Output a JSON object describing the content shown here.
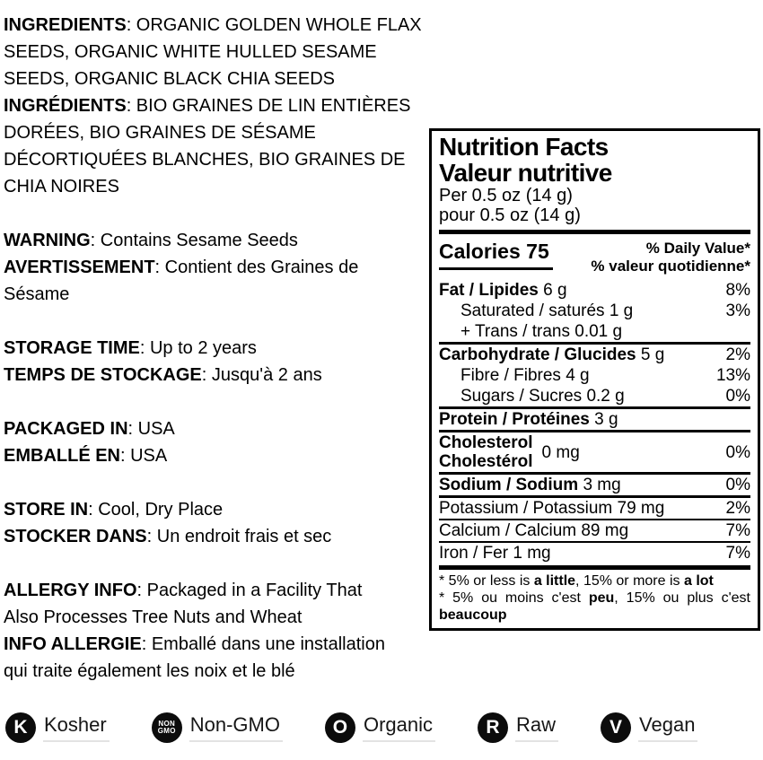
{
  "colors": {
    "text": "#000000",
    "badge_fill": "#0c0c0c",
    "badge_letter": "#ffffff",
    "label_underline": "#e3e3e3",
    "panel_border": "#000000"
  },
  "left": {
    "paragraphs": [
      [
        [
          {
            "t": "INGREDIENTS",
            "b": true
          },
          {
            "t": ": ORGANIC GOLDEN WHOLE FLAX",
            "b": false
          }
        ],
        [
          {
            "t": "SEEDS, ORGANIC WHITE HULLED SESAME",
            "b": false
          }
        ],
        [
          {
            "t": "SEEDS, ORGANIC BLACK CHIA SEEDS",
            "b": false
          }
        ],
        [
          {
            "t": "INGRÉDIENTS",
            "b": true
          },
          {
            "t": ": BIO GRAINES DE LIN ENTIÈRES",
            "b": false
          }
        ],
        [
          {
            "t": "DORÉES, BIO GRAINES DE SÉSAME",
            "b": false
          }
        ],
        [
          {
            "t": "DÉCORTIQUÉES BLANCHES, BIO GRAINES DE",
            "b": false
          }
        ],
        [
          {
            "t": "CHIA NOIRES",
            "b": false
          }
        ]
      ],
      [
        [
          {
            "t": "WARNING",
            "b": true
          },
          {
            "t": ": Contains Sesame Seeds",
            "b": false
          }
        ],
        [
          {
            "t": "AVERTISSEMENT",
            "b": true
          },
          {
            "t": ": Contient des Graines de",
            "b": false
          }
        ],
        [
          {
            "t": "Sésame",
            "b": false
          }
        ]
      ],
      [
        [
          {
            "t": "STORAGE TIME",
            "b": true
          },
          {
            "t": ": Up to 2 years",
            "b": false
          }
        ],
        [
          {
            "t": "TEMPS DE STOCKAGE",
            "b": true
          },
          {
            "t": ": Jusqu'à 2 ans",
            "b": false
          }
        ]
      ],
      [
        [
          {
            "t": "PACKAGED IN",
            "b": true
          },
          {
            "t": ": USA",
            "b": false
          }
        ],
        [
          {
            "t": "EMBALLÉ EN",
            "b": true
          },
          {
            "t": ": USA",
            "b": false
          }
        ]
      ],
      [
        [
          {
            "t": "STORE IN",
            "b": true
          },
          {
            "t": ": Cool, Dry Place",
            "b": false
          }
        ],
        [
          {
            "t": "STOCKER DANS",
            "b": true
          },
          {
            "t": ": Un endroit frais et sec",
            "b": false
          }
        ]
      ],
      [
        [
          {
            "t": "ALLERGY INFO",
            "b": true
          },
          {
            "t": ": Packaged in a Facility That",
            "b": false
          }
        ],
        [
          {
            "t": "Also Processes Tree Nuts and Wheat",
            "b": false
          }
        ],
        [
          {
            "t": "INFO ALLERGIE",
            "b": true
          },
          {
            "t": ": Emballé dans une installation",
            "b": false
          }
        ],
        [
          {
            "t": "qui traite également les noix et le blé",
            "b": false
          }
        ]
      ]
    ]
  },
  "nutrition": {
    "title_en": "Nutrition Facts",
    "title_fr": "Valeur nutritive",
    "serving_en": "Per 0.5 oz (14 g)",
    "serving_fr": "pour 0.5 oz (14 g)",
    "calories_label": "Calories",
    "calories_value": "75",
    "dv_header_en": "% Daily Value*",
    "dv_header_fr": "% valeur quotidienne*",
    "rows": [
      {
        "name": [
          {
            "t": "Fat / Lipides",
            "b": true
          },
          {
            "t": " 6 g",
            "b": false
          }
        ],
        "pct": "8%",
        "indent": false,
        "rule": "none"
      },
      {
        "name": [
          {
            "t": "Saturated / saturés 1 g",
            "b": false
          }
        ],
        "pct": "3%",
        "indent": true,
        "rule": "none"
      },
      {
        "name": [
          {
            "t": "+ Trans / trans 0.01 g",
            "b": false
          }
        ],
        "pct": "",
        "indent": true,
        "rule": "none"
      },
      {
        "name": [
          {
            "t": "Carbohydrate / Glucides",
            "b": true
          },
          {
            "t": " 5 g",
            "b": false
          }
        ],
        "pct": "2%",
        "indent": false,
        "rule": "medium"
      },
      {
        "name": [
          {
            "t": "Fibre / Fibres 4 g",
            "b": false
          }
        ],
        "pct": "13%",
        "indent": true,
        "rule": "none"
      },
      {
        "name": [
          {
            "t": "Sugars / Sucres 0.2 g",
            "b": false
          }
        ],
        "pct": "0%",
        "indent": true,
        "rule": "none"
      },
      {
        "name": [
          {
            "t": "Protein / Protéines",
            "b": true
          },
          {
            "t": " 3 g",
            "b": false
          }
        ],
        "pct": "",
        "indent": false,
        "rule": "medium"
      },
      {
        "two_line": true,
        "name_lines": [
          "Cholesterol",
          "Cholestérol"
        ],
        "value": "0 mg",
        "pct": "0%",
        "rule": "medium"
      },
      {
        "name": [
          {
            "t": "Sodium / Sodium",
            "b": true
          },
          {
            "t": " 3 mg",
            "b": false
          }
        ],
        "pct": "0%",
        "indent": false,
        "rule": "medium"
      },
      {
        "name": [
          {
            "t": "Potassium / Potassium 79 mg",
            "b": false
          }
        ],
        "pct": "2%",
        "indent": false,
        "rule": "medium"
      },
      {
        "name": [
          {
            "t": "Calcium / Calcium 89 mg",
            "b": false
          }
        ],
        "pct": "7%",
        "indent": false,
        "rule": "thin"
      },
      {
        "name": [
          {
            "t": "Iron / Fer 1 mg",
            "b": false
          }
        ],
        "pct": "7%",
        "indent": false,
        "rule": "thin"
      }
    ],
    "footnote": [
      {
        "justify": false,
        "runs": [
          {
            "t": "* 5% or less is ",
            "b": false
          },
          {
            "t": "a little",
            "b": true
          },
          {
            "t": ", 15% or more is ",
            "b": false
          },
          {
            "t": "a lot",
            "b": true
          }
        ]
      },
      {
        "justify": true,
        "runs": [
          {
            "t": "* 5% ou moins c'est ",
            "b": false
          },
          {
            "t": "peu",
            "b": true
          },
          {
            "t": ", 15% ou plus c'est",
            "b": false
          }
        ]
      },
      {
        "justify": false,
        "runs": [
          {
            "t": "beaucoup",
            "b": true
          }
        ]
      }
    ]
  },
  "badges": {
    "items": [
      {
        "icon": "kosher-badge-icon",
        "glyph": [
          "K"
        ],
        "label": "Kosher"
      },
      {
        "icon": "non-gmo-badge-icon",
        "glyph": [
          "NON",
          "GMO"
        ],
        "label": "Non-GMO"
      },
      {
        "icon": "organic-badge-icon",
        "glyph": [
          "O"
        ],
        "label": "Organic"
      },
      {
        "icon": "raw-badge-icon",
        "glyph": [
          "R"
        ],
        "label": "Raw"
      },
      {
        "icon": "vegan-badge-icon",
        "glyph": [
          "V"
        ],
        "label": "Vegan"
      }
    ]
  }
}
